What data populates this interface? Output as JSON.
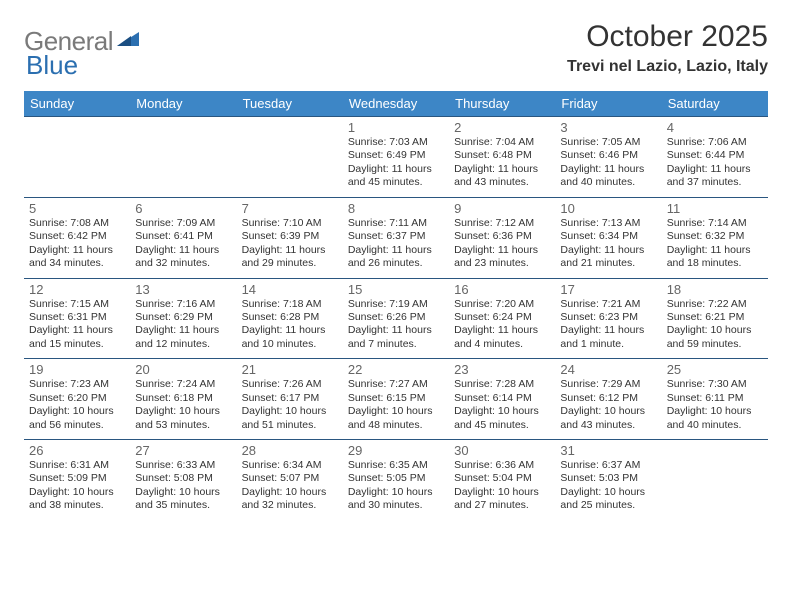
{
  "brand": {
    "part1": "General",
    "part2": "Blue"
  },
  "title": "October 2025",
  "location": "Trevi nel Lazio, Lazio, Italy",
  "colors": {
    "header_bg": "#3d86c6",
    "header_fg": "#ffffff",
    "border": "#2a5680",
    "logo_gray": "#7a7a7a",
    "logo_blue": "#2b6fb0",
    "text": "#333333"
  },
  "weekdays": [
    "Sunday",
    "Monday",
    "Tuesday",
    "Wednesday",
    "Thursday",
    "Friday",
    "Saturday"
  ],
  "weeks": [
    [
      {
        "day": "",
        "sunrise": "",
        "sunset": "",
        "daylight1": "",
        "daylight2": ""
      },
      {
        "day": "",
        "sunrise": "",
        "sunset": "",
        "daylight1": "",
        "daylight2": ""
      },
      {
        "day": "",
        "sunrise": "",
        "sunset": "",
        "daylight1": "",
        "daylight2": ""
      },
      {
        "day": "1",
        "sunrise": "Sunrise: 7:03 AM",
        "sunset": "Sunset: 6:49 PM",
        "daylight1": "Daylight: 11 hours",
        "daylight2": "and 45 minutes."
      },
      {
        "day": "2",
        "sunrise": "Sunrise: 7:04 AM",
        "sunset": "Sunset: 6:48 PM",
        "daylight1": "Daylight: 11 hours",
        "daylight2": "and 43 minutes."
      },
      {
        "day": "3",
        "sunrise": "Sunrise: 7:05 AM",
        "sunset": "Sunset: 6:46 PM",
        "daylight1": "Daylight: 11 hours",
        "daylight2": "and 40 minutes."
      },
      {
        "day": "4",
        "sunrise": "Sunrise: 7:06 AM",
        "sunset": "Sunset: 6:44 PM",
        "daylight1": "Daylight: 11 hours",
        "daylight2": "and 37 minutes."
      }
    ],
    [
      {
        "day": "5",
        "sunrise": "Sunrise: 7:08 AM",
        "sunset": "Sunset: 6:42 PM",
        "daylight1": "Daylight: 11 hours",
        "daylight2": "and 34 minutes."
      },
      {
        "day": "6",
        "sunrise": "Sunrise: 7:09 AM",
        "sunset": "Sunset: 6:41 PM",
        "daylight1": "Daylight: 11 hours",
        "daylight2": "and 32 minutes."
      },
      {
        "day": "7",
        "sunrise": "Sunrise: 7:10 AM",
        "sunset": "Sunset: 6:39 PM",
        "daylight1": "Daylight: 11 hours",
        "daylight2": "and 29 minutes."
      },
      {
        "day": "8",
        "sunrise": "Sunrise: 7:11 AM",
        "sunset": "Sunset: 6:37 PM",
        "daylight1": "Daylight: 11 hours",
        "daylight2": "and 26 minutes."
      },
      {
        "day": "9",
        "sunrise": "Sunrise: 7:12 AM",
        "sunset": "Sunset: 6:36 PM",
        "daylight1": "Daylight: 11 hours",
        "daylight2": "and 23 minutes."
      },
      {
        "day": "10",
        "sunrise": "Sunrise: 7:13 AM",
        "sunset": "Sunset: 6:34 PM",
        "daylight1": "Daylight: 11 hours",
        "daylight2": "and 21 minutes."
      },
      {
        "day": "11",
        "sunrise": "Sunrise: 7:14 AM",
        "sunset": "Sunset: 6:32 PM",
        "daylight1": "Daylight: 11 hours",
        "daylight2": "and 18 minutes."
      }
    ],
    [
      {
        "day": "12",
        "sunrise": "Sunrise: 7:15 AM",
        "sunset": "Sunset: 6:31 PM",
        "daylight1": "Daylight: 11 hours",
        "daylight2": "and 15 minutes."
      },
      {
        "day": "13",
        "sunrise": "Sunrise: 7:16 AM",
        "sunset": "Sunset: 6:29 PM",
        "daylight1": "Daylight: 11 hours",
        "daylight2": "and 12 minutes."
      },
      {
        "day": "14",
        "sunrise": "Sunrise: 7:18 AM",
        "sunset": "Sunset: 6:28 PM",
        "daylight1": "Daylight: 11 hours",
        "daylight2": "and 10 minutes."
      },
      {
        "day": "15",
        "sunrise": "Sunrise: 7:19 AM",
        "sunset": "Sunset: 6:26 PM",
        "daylight1": "Daylight: 11 hours",
        "daylight2": "and 7 minutes."
      },
      {
        "day": "16",
        "sunrise": "Sunrise: 7:20 AM",
        "sunset": "Sunset: 6:24 PM",
        "daylight1": "Daylight: 11 hours",
        "daylight2": "and 4 minutes."
      },
      {
        "day": "17",
        "sunrise": "Sunrise: 7:21 AM",
        "sunset": "Sunset: 6:23 PM",
        "daylight1": "Daylight: 11 hours",
        "daylight2": "and 1 minute."
      },
      {
        "day": "18",
        "sunrise": "Sunrise: 7:22 AM",
        "sunset": "Sunset: 6:21 PM",
        "daylight1": "Daylight: 10 hours",
        "daylight2": "and 59 minutes."
      }
    ],
    [
      {
        "day": "19",
        "sunrise": "Sunrise: 7:23 AM",
        "sunset": "Sunset: 6:20 PM",
        "daylight1": "Daylight: 10 hours",
        "daylight2": "and 56 minutes."
      },
      {
        "day": "20",
        "sunrise": "Sunrise: 7:24 AM",
        "sunset": "Sunset: 6:18 PM",
        "daylight1": "Daylight: 10 hours",
        "daylight2": "and 53 minutes."
      },
      {
        "day": "21",
        "sunrise": "Sunrise: 7:26 AM",
        "sunset": "Sunset: 6:17 PM",
        "daylight1": "Daylight: 10 hours",
        "daylight2": "and 51 minutes."
      },
      {
        "day": "22",
        "sunrise": "Sunrise: 7:27 AM",
        "sunset": "Sunset: 6:15 PM",
        "daylight1": "Daylight: 10 hours",
        "daylight2": "and 48 minutes."
      },
      {
        "day": "23",
        "sunrise": "Sunrise: 7:28 AM",
        "sunset": "Sunset: 6:14 PM",
        "daylight1": "Daylight: 10 hours",
        "daylight2": "and 45 minutes."
      },
      {
        "day": "24",
        "sunrise": "Sunrise: 7:29 AM",
        "sunset": "Sunset: 6:12 PM",
        "daylight1": "Daylight: 10 hours",
        "daylight2": "and 43 minutes."
      },
      {
        "day": "25",
        "sunrise": "Sunrise: 7:30 AM",
        "sunset": "Sunset: 6:11 PM",
        "daylight1": "Daylight: 10 hours",
        "daylight2": "and 40 minutes."
      }
    ],
    [
      {
        "day": "26",
        "sunrise": "Sunrise: 6:31 AM",
        "sunset": "Sunset: 5:09 PM",
        "daylight1": "Daylight: 10 hours",
        "daylight2": "and 38 minutes."
      },
      {
        "day": "27",
        "sunrise": "Sunrise: 6:33 AM",
        "sunset": "Sunset: 5:08 PM",
        "daylight1": "Daylight: 10 hours",
        "daylight2": "and 35 minutes."
      },
      {
        "day": "28",
        "sunrise": "Sunrise: 6:34 AM",
        "sunset": "Sunset: 5:07 PM",
        "daylight1": "Daylight: 10 hours",
        "daylight2": "and 32 minutes."
      },
      {
        "day": "29",
        "sunrise": "Sunrise: 6:35 AM",
        "sunset": "Sunset: 5:05 PM",
        "daylight1": "Daylight: 10 hours",
        "daylight2": "and 30 minutes."
      },
      {
        "day": "30",
        "sunrise": "Sunrise: 6:36 AM",
        "sunset": "Sunset: 5:04 PM",
        "daylight1": "Daylight: 10 hours",
        "daylight2": "and 27 minutes."
      },
      {
        "day": "31",
        "sunrise": "Sunrise: 6:37 AM",
        "sunset": "Sunset: 5:03 PM",
        "daylight1": "Daylight: 10 hours",
        "daylight2": "and 25 minutes."
      },
      {
        "day": "",
        "sunrise": "",
        "sunset": "",
        "daylight1": "",
        "daylight2": ""
      }
    ]
  ]
}
